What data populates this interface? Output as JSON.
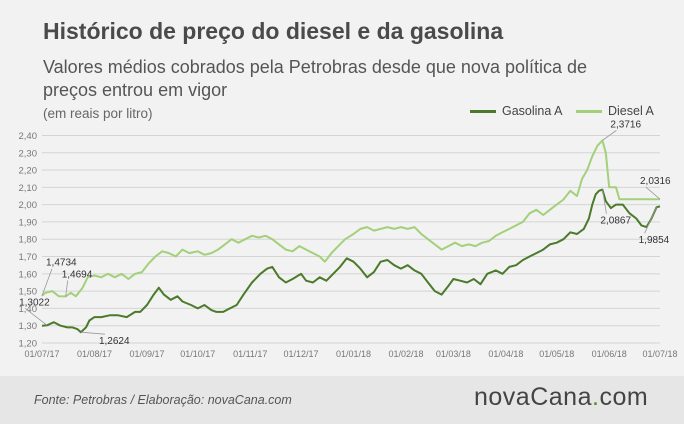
{
  "header": {
    "title": "Histórico de preço do diesel e da gasolina",
    "subtitle": "Valores médios cobrados pela Petrobras desde que nova política de preços entrou em vigor",
    "unit": "(em reais por litro)"
  },
  "footer": {
    "source": "Fonte: Petrobras / Elaboração: novaCana.com",
    "brand_left": "novaCana",
    "brand_dot": ".",
    "brand_right": "com"
  },
  "colors": {
    "gasolina": "#4a7a2a",
    "diesel": "#a3d07a",
    "grid": "#d4d4d4",
    "axis_text": "#777777"
  },
  "chart_data": {
    "type": "line",
    "ylim": [
      1.2,
      2.42
    ],
    "yticks": [
      "1,20",
      "1,30",
      "1,40",
      "1,50",
      "1,60",
      "1,70",
      "1,80",
      "1,90",
      "2,00",
      "2,10",
      "2,20",
      "2,30",
      "2,40"
    ],
    "xlim": [
      "2017-07-01",
      "2018-07-01"
    ],
    "xticks": [
      "01/07/17",
      "01/08/17",
      "01/09/17",
      "01/10/17",
      "01/11/17",
      "01/12/17",
      "01/01/18",
      "01/02/18",
      "01/03/18",
      "01/04/18",
      "01/05/18",
      "01/06/18",
      "01/07/18"
    ],
    "grid": true,
    "legend_position": "top-right",
    "series": [
      {
        "name": "Gasolina A",
        "color": "#4a7a2a",
        "points": [
          [
            "2017-07-01",
            1.3
          ],
          [
            "2017-07-04",
            1.3022
          ],
          [
            "2017-07-08",
            1.32
          ],
          [
            "2017-07-12",
            1.3
          ],
          [
            "2017-07-16",
            1.29
          ],
          [
            "2017-07-19",
            1.29
          ],
          [
            "2017-07-22",
            1.28
          ],
          [
            "2017-07-24",
            1.2624
          ],
          [
            "2017-07-27",
            1.29
          ],
          [
            "2017-07-29",
            1.33
          ],
          [
            "2017-08-01",
            1.35
          ],
          [
            "2017-08-05",
            1.35
          ],
          [
            "2017-08-10",
            1.36
          ],
          [
            "2017-08-15",
            1.36
          ],
          [
            "2017-08-20",
            1.35
          ],
          [
            "2017-08-25",
            1.38
          ],
          [
            "2017-08-28",
            1.38
          ],
          [
            "2017-09-01",
            1.42
          ],
          [
            "2017-09-05",
            1.48
          ],
          [
            "2017-09-08",
            1.52
          ],
          [
            "2017-09-11",
            1.48
          ],
          [
            "2017-09-15",
            1.45
          ],
          [
            "2017-09-19",
            1.47
          ],
          [
            "2017-09-22",
            1.44
          ],
          [
            "2017-09-27",
            1.42
          ],
          [
            "2017-10-01",
            1.4
          ],
          [
            "2017-10-05",
            1.42
          ],
          [
            "2017-10-09",
            1.39
          ],
          [
            "2017-10-12",
            1.38
          ],
          [
            "2017-10-16",
            1.38
          ],
          [
            "2017-10-20",
            1.4
          ],
          [
            "2017-10-24",
            1.42
          ],
          [
            "2017-10-28",
            1.48
          ],
          [
            "2017-11-02",
            1.55
          ],
          [
            "2017-11-07",
            1.6
          ],
          [
            "2017-11-11",
            1.63
          ],
          [
            "2017-11-14",
            1.64
          ],
          [
            "2017-11-18",
            1.58
          ],
          [
            "2017-11-22",
            1.55
          ],
          [
            "2017-11-26",
            1.57
          ],
          [
            "2017-12-01",
            1.6
          ],
          [
            "2017-12-04",
            1.56
          ],
          [
            "2017-12-08",
            1.55
          ],
          [
            "2017-12-12",
            1.58
          ],
          [
            "2017-12-16",
            1.56
          ],
          [
            "2017-12-20",
            1.6
          ],
          [
            "2017-12-24",
            1.64
          ],
          [
            "2017-12-28",
            1.69
          ],
          [
            "2018-01-01",
            1.67
          ],
          [
            "2018-01-05",
            1.63
          ],
          [
            "2018-01-09",
            1.58
          ],
          [
            "2018-01-13",
            1.61
          ],
          [
            "2018-01-17",
            1.67
          ],
          [
            "2018-01-21",
            1.68
          ],
          [
            "2018-01-25",
            1.65
          ],
          [
            "2018-01-29",
            1.63
          ],
          [
            "2018-02-02",
            1.65
          ],
          [
            "2018-02-06",
            1.62
          ],
          [
            "2018-02-10",
            1.6
          ],
          [
            "2018-02-14",
            1.55
          ],
          [
            "2018-02-18",
            1.5
          ],
          [
            "2018-02-22",
            1.48
          ],
          [
            "2018-02-26",
            1.53
          ],
          [
            "2018-03-01",
            1.57
          ],
          [
            "2018-03-05",
            1.56
          ],
          [
            "2018-03-09",
            1.55
          ],
          [
            "2018-03-13",
            1.57
          ],
          [
            "2018-03-17",
            1.54
          ],
          [
            "2018-03-21",
            1.6
          ],
          [
            "2018-03-26",
            1.62
          ],
          [
            "2018-03-30",
            1.6
          ],
          [
            "2018-04-03",
            1.64
          ],
          [
            "2018-04-07",
            1.65
          ],
          [
            "2018-04-11",
            1.68
          ],
          [
            "2018-04-15",
            1.7
          ],
          [
            "2018-04-19",
            1.72
          ],
          [
            "2018-04-23",
            1.74
          ],
          [
            "2018-04-27",
            1.77
          ],
          [
            "2018-05-01",
            1.78
          ],
          [
            "2018-05-05",
            1.8
          ],
          [
            "2018-05-09",
            1.84
          ],
          [
            "2018-05-13",
            1.83
          ],
          [
            "2018-05-17",
            1.86
          ],
          [
            "2018-05-20",
            1.92
          ],
          [
            "2018-05-22",
            2.0
          ],
          [
            "2018-05-24",
            2.06
          ],
          [
            "2018-05-26",
            2.08
          ],
          [
            "2018-05-28",
            2.0867
          ],
          [
            "2018-05-30",
            2.02
          ],
          [
            "2018-06-02",
            1.98
          ],
          [
            "2018-06-05",
            2.0
          ],
          [
            "2018-06-09",
            2.0
          ],
          [
            "2018-06-13",
            1.95
          ],
          [
            "2018-06-17",
            1.92
          ],
          [
            "2018-06-20",
            1.88
          ],
          [
            "2018-06-23",
            1.87
          ],
          [
            "2018-06-26",
            1.92
          ],
          [
            "2018-06-29",
            1.9854
          ],
          [
            "2018-07-01",
            1.99
          ]
        ]
      },
      {
        "name": "Diesel A",
        "color": "#a3d07a",
        "points": [
          [
            "2017-07-01",
            1.4734
          ],
          [
            "2017-07-03",
            1.49
          ],
          [
            "2017-07-07",
            1.5
          ],
          [
            "2017-07-11",
            1.47
          ],
          [
            "2017-07-15",
            1.4694
          ],
          [
            "2017-07-18",
            1.49
          ],
          [
            "2017-07-21",
            1.47
          ],
          [
            "2017-07-25",
            1.52
          ],
          [
            "2017-07-28",
            1.58
          ],
          [
            "2017-08-01",
            1.59
          ],
          [
            "2017-08-05",
            1.58
          ],
          [
            "2017-08-09",
            1.6
          ],
          [
            "2017-08-13",
            1.58
          ],
          [
            "2017-08-17",
            1.6
          ],
          [
            "2017-08-21",
            1.57
          ],
          [
            "2017-08-25",
            1.6
          ],
          [
            "2017-08-29",
            1.61
          ],
          [
            "2017-09-02",
            1.66
          ],
          [
            "2017-09-06",
            1.7
          ],
          [
            "2017-09-10",
            1.73
          ],
          [
            "2017-09-14",
            1.72
          ],
          [
            "2017-09-18",
            1.7
          ],
          [
            "2017-09-22",
            1.74
          ],
          [
            "2017-09-26",
            1.72
          ],
          [
            "2017-10-01",
            1.73
          ],
          [
            "2017-10-05",
            1.71
          ],
          [
            "2017-10-09",
            1.72
          ],
          [
            "2017-10-13",
            1.74
          ],
          [
            "2017-10-17",
            1.77
          ],
          [
            "2017-10-21",
            1.8
          ],
          [
            "2017-10-25",
            1.78
          ],
          [
            "2017-10-29",
            1.8
          ],
          [
            "2017-11-02",
            1.82
          ],
          [
            "2017-11-06",
            1.81
          ],
          [
            "2017-11-10",
            1.82
          ],
          [
            "2017-11-14",
            1.8
          ],
          [
            "2017-11-18",
            1.77
          ],
          [
            "2017-11-22",
            1.74
          ],
          [
            "2017-11-26",
            1.73
          ],
          [
            "2017-11-30",
            1.76
          ],
          [
            "2017-12-04",
            1.74
          ],
          [
            "2017-12-08",
            1.72
          ],
          [
            "2017-12-12",
            1.7
          ],
          [
            "2017-12-15",
            1.67
          ],
          [
            "2017-12-19",
            1.72
          ],
          [
            "2017-12-23",
            1.76
          ],
          [
            "2017-12-27",
            1.8
          ],
          [
            "2018-01-01",
            1.83
          ],
          [
            "2018-01-05",
            1.86
          ],
          [
            "2018-01-09",
            1.87
          ],
          [
            "2018-01-13",
            1.85
          ],
          [
            "2018-01-17",
            1.86
          ],
          [
            "2018-01-21",
            1.87
          ],
          [
            "2018-01-25",
            1.86
          ],
          [
            "2018-01-29",
            1.87
          ],
          [
            "2018-02-02",
            1.86
          ],
          [
            "2018-02-06",
            1.87
          ],
          [
            "2018-02-10",
            1.83
          ],
          [
            "2018-02-14",
            1.8
          ],
          [
            "2018-02-18",
            1.77
          ],
          [
            "2018-02-22",
            1.74
          ],
          [
            "2018-02-26",
            1.76
          ],
          [
            "2018-03-02",
            1.78
          ],
          [
            "2018-03-06",
            1.76
          ],
          [
            "2018-03-10",
            1.77
          ],
          [
            "2018-03-14",
            1.76
          ],
          [
            "2018-03-18",
            1.78
          ],
          [
            "2018-03-22",
            1.79
          ],
          [
            "2018-03-26",
            1.82
          ],
          [
            "2018-03-30",
            1.84
          ],
          [
            "2018-04-03",
            1.86
          ],
          [
            "2018-04-07",
            1.88
          ],
          [
            "2018-04-11",
            1.9
          ],
          [
            "2018-04-15",
            1.95
          ],
          [
            "2018-04-19",
            1.97
          ],
          [
            "2018-04-23",
            1.94
          ],
          [
            "2018-04-27",
            1.97
          ],
          [
            "2018-05-01",
            2.0
          ],
          [
            "2018-05-05",
            2.03
          ],
          [
            "2018-05-09",
            2.08
          ],
          [
            "2018-05-13",
            2.05
          ],
          [
            "2018-05-16",
            2.15
          ],
          [
            "2018-05-19",
            2.2
          ],
          [
            "2018-05-22",
            2.28
          ],
          [
            "2018-05-25",
            2.34
          ],
          [
            "2018-05-28",
            2.3716
          ],
          [
            "2018-05-30",
            2.3
          ],
          [
            "2018-06-01",
            2.1
          ],
          [
            "2018-06-05",
            2.1
          ],
          [
            "2018-06-07",
            2.0316
          ],
          [
            "2018-07-01",
            2.0316
          ]
        ]
      }
    ],
    "annotations": [
      {
        "label": "1,4734",
        "x": "2017-07-01",
        "y": 1.4734,
        "series": "Diesel A"
      },
      {
        "label": "1,4694",
        "x": "2017-07-15",
        "y": 1.4694,
        "series": "Diesel A"
      },
      {
        "label": "1,3022",
        "x": "2017-07-04",
        "y": 1.3022,
        "series": "Gasolina A"
      },
      {
        "label": "1,2624",
        "x": "2017-07-24",
        "y": 1.2624,
        "series": "Gasolina A"
      },
      {
        "label": "2,3716",
        "x": "2018-05-28",
        "y": 2.3716,
        "series": "Diesel A"
      },
      {
        "label": "2,0316",
        "x": "2018-07-01",
        "y": 2.0316,
        "series": "Diesel A"
      },
      {
        "label": "2,0867",
        "x": "2018-05-28",
        "y": 2.0867,
        "series": "Gasolina A"
      },
      {
        "label": "1,9854",
        "x": "2018-06-29",
        "y": 1.9854,
        "series": "Gasolina A"
      }
    ]
  }
}
